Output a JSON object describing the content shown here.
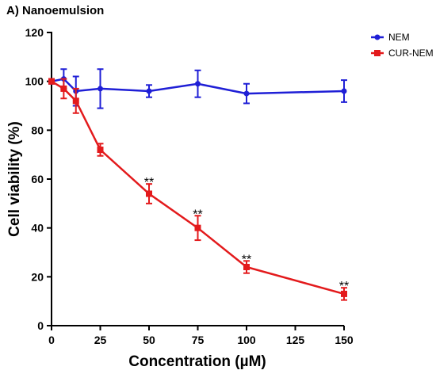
{
  "chart_data": {
    "type": "line",
    "title": "A) Nanoemulsion",
    "xlabel": "Concentration (µM)",
    "ylabel": "Cell viability (%)",
    "xlim": [
      0,
      150
    ],
    "ylim": [
      0,
      120
    ],
    "x_ticks": [
      "0",
      "25",
      "50",
      "75",
      "100",
      "125",
      "150"
    ],
    "y_ticks": [
      "0",
      "20",
      "40",
      "60",
      "80",
      "100",
      "120"
    ],
    "grid": false,
    "legend_position": "top-right",
    "series": [
      {
        "name": "NEM",
        "color": "#1f1fd6",
        "marker": "circle",
        "x": [
          0,
          6.25,
          12.5,
          25,
          50,
          75,
          100,
          150
        ],
        "y": [
          100,
          101,
          96,
          97,
          96,
          99,
          95,
          96
        ],
        "err": [
          1,
          4,
          6,
          8,
          2.5,
          5.5,
          4,
          4.5
        ]
      },
      {
        "name": "CUR-NEM",
        "color": "#e31a1c",
        "marker": "square",
        "x": [
          0,
          6.25,
          12.5,
          25,
          50,
          75,
          100,
          150
        ],
        "y": [
          100,
          97,
          92,
          72,
          54,
          40,
          24,
          13
        ],
        "err": [
          1,
          4,
          5,
          2.5,
          4,
          5,
          2.5,
          2.5
        ]
      }
    ],
    "annotations": [
      {
        "text": "**",
        "x": 50,
        "y": 54
      },
      {
        "text": "**",
        "x": 75,
        "y": 40
      },
      {
        "text": "**",
        "x": 100,
        "y": 24
      },
      {
        "text": "**",
        "x": 150,
        "y": 13
      }
    ]
  }
}
